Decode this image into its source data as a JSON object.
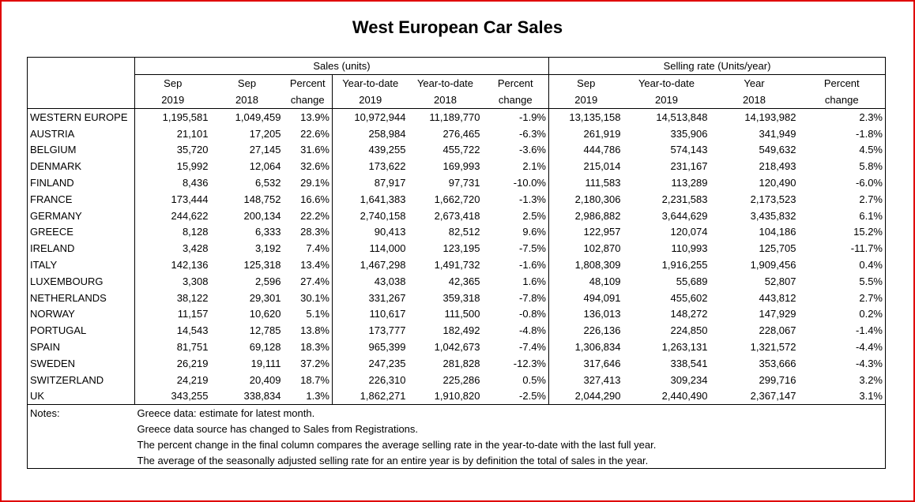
{
  "title": "West European Car Sales",
  "table": {
    "group_headers": [
      "Sales (units)",
      "Selling rate (Units/year)"
    ],
    "column_headers": [
      [
        "Sep",
        "2019"
      ],
      [
        "Sep",
        "2018"
      ],
      [
        "Percent",
        "change"
      ],
      [
        "Year-to-date",
        "2019"
      ],
      [
        "Year-to-date",
        "2018"
      ],
      [
        "Percent",
        "change"
      ],
      [
        "Sep",
        "2019"
      ],
      [
        "Year-to-date",
        "2019"
      ],
      [
        "Year",
        "2018"
      ],
      [
        "Percent",
        "change"
      ]
    ],
    "rows": [
      [
        "WESTERN EUROPE",
        "1,195,581",
        "1,049,459",
        "13.9%",
        "10,972,944",
        "11,189,770",
        "-1.9%",
        "13,135,158",
        "14,513,848",
        "14,193,982",
        "2.3%"
      ],
      [
        "AUSTRIA",
        "21,101",
        "17,205",
        "22.6%",
        "258,984",
        "276,465",
        "-6.3%",
        "261,919",
        "335,906",
        "341,949",
        "-1.8%"
      ],
      [
        "BELGIUM",
        "35,720",
        "27,145",
        "31.6%",
        "439,255",
        "455,722",
        "-3.6%",
        "444,786",
        "574,143",
        "549,632",
        "4.5%"
      ],
      [
        "DENMARK",
        "15,992",
        "12,064",
        "32.6%",
        "173,622",
        "169,993",
        "2.1%",
        "215,014",
        "231,167",
        "218,493",
        "5.8%"
      ],
      [
        "FINLAND",
        "8,436",
        "6,532",
        "29.1%",
        "87,917",
        "97,731",
        "-10.0%",
        "111,583",
        "113,289",
        "120,490",
        "-6.0%"
      ],
      [
        "FRANCE",
        "173,444",
        "148,752",
        "16.6%",
        "1,641,383",
        "1,662,720",
        "-1.3%",
        "2,180,306",
        "2,231,583",
        "2,173,523",
        "2.7%"
      ],
      [
        "GERMANY",
        "244,622",
        "200,134",
        "22.2%",
        "2,740,158",
        "2,673,418",
        "2.5%",
        "2,986,882",
        "3,644,629",
        "3,435,832",
        "6.1%"
      ],
      [
        "GREECE",
        "8,128",
        "6,333",
        "28.3%",
        "90,413",
        "82,512",
        "9.6%",
        "122,957",
        "120,074",
        "104,186",
        "15.2%"
      ],
      [
        "IRELAND",
        "3,428",
        "3,192",
        "7.4%",
        "114,000",
        "123,195",
        "-7.5%",
        "102,870",
        "110,993",
        "125,705",
        "-11.7%"
      ],
      [
        "ITALY",
        "142,136",
        "125,318",
        "13.4%",
        "1,467,298",
        "1,491,732",
        "-1.6%",
        "1,808,309",
        "1,916,255",
        "1,909,456",
        "0.4%"
      ],
      [
        "LUXEMBOURG",
        "3,308",
        "2,596",
        "27.4%",
        "43,038",
        "42,365",
        "1.6%",
        "48,109",
        "55,689",
        "52,807",
        "5.5%"
      ],
      [
        "NETHERLANDS",
        "38,122",
        "29,301",
        "30.1%",
        "331,267",
        "359,318",
        "-7.8%",
        "494,091",
        "455,602",
        "443,812",
        "2.7%"
      ],
      [
        "NORWAY",
        "11,157",
        "10,620",
        "5.1%",
        "110,617",
        "111,500",
        "-0.8%",
        "136,013",
        "148,272",
        "147,929",
        "0.2%"
      ],
      [
        "PORTUGAL",
        "14,543",
        "12,785",
        "13.8%",
        "173,777",
        "182,492",
        "-4.8%",
        "226,136",
        "224,850",
        "228,067",
        "-1.4%"
      ],
      [
        "SPAIN",
        "81,751",
        "69,128",
        "18.3%",
        "965,399",
        "1,042,673",
        "-7.4%",
        "1,306,834",
        "1,263,131",
        "1,321,572",
        "-4.4%"
      ],
      [
        "SWEDEN",
        "26,219",
        "19,111",
        "37.2%",
        "247,235",
        "281,828",
        "-12.3%",
        "317,646",
        "338,541",
        "353,666",
        "-4.3%"
      ],
      [
        "SWITZERLAND",
        "24,219",
        "20,409",
        "18.7%",
        "226,310",
        "225,286",
        "0.5%",
        "327,413",
        "309,234",
        "299,716",
        "3.2%"
      ],
      [
        "UK",
        "343,255",
        "338,834",
        "1.3%",
        "1,862,271",
        "1,910,820",
        "-2.5%",
        "2,044,290",
        "2,440,490",
        "2,367,147",
        "3.1%"
      ]
    ]
  },
  "notes": {
    "label": "Notes:",
    "lines": [
      "Greece data: estimate for latest month.",
      "Greece data source has changed to Sales from Registrations.",
      "The percent change in the final column compares the average selling rate in the year-to-date with the last full year.",
      "The average of the seasonally adjusted selling rate for an entire year is by definition the total of sales in the year."
    ]
  }
}
